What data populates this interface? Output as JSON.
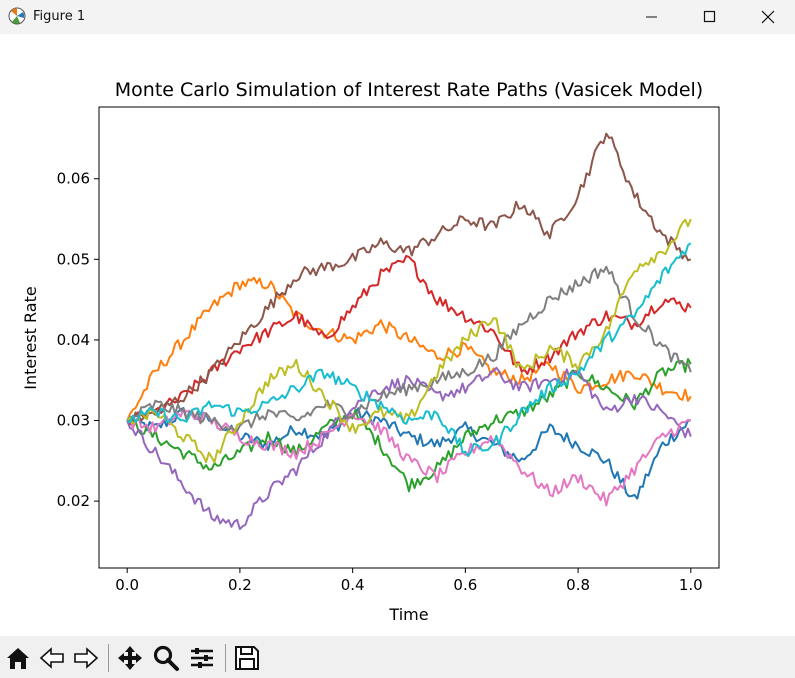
{
  "window": {
    "title": "Figure 1",
    "controls": [
      "minimize",
      "maximize",
      "close"
    ]
  },
  "toolbar": {
    "buttons": [
      {
        "name": "home",
        "icon": "home-icon"
      },
      {
        "name": "back",
        "icon": "back-arrow-icon"
      },
      {
        "name": "forward",
        "icon": "forward-arrow-icon"
      },
      {
        "name": "pan",
        "icon": "move-icon"
      },
      {
        "name": "zoom",
        "icon": "zoom-icon"
      },
      {
        "name": "configure-subplots",
        "icon": "sliders-icon"
      },
      {
        "name": "save",
        "icon": "save-icon"
      }
    ]
  },
  "chart_data": {
    "type": "line",
    "title": "Monte Carlo Simulation of Interest Rate Paths (Vasicek Model)",
    "xlabel": "Time",
    "ylabel": "Interest Rate",
    "xlim": [
      -0.05,
      1.05
    ],
    "ylim": [
      0.0117,
      0.0689
    ],
    "xticks": [
      0.0,
      0.2,
      0.4,
      0.6,
      0.8,
      1.0
    ],
    "xtick_labels": [
      "0.0",
      "0.2",
      "0.4",
      "0.6",
      "0.8",
      "1.0"
    ],
    "yticks": [
      0.02,
      0.03,
      0.04,
      0.05,
      0.06
    ],
    "ytick_labels": [
      "0.02",
      "0.03",
      "0.04",
      "0.05",
      "0.06"
    ],
    "grid": false,
    "legend": "none",
    "series": [
      {
        "color": "#1f77b4",
        "x": [
          0,
          0.05,
          0.1,
          0.15,
          0.2,
          0.25,
          0.3,
          0.35,
          0.4,
          0.45,
          0.5,
          0.55,
          0.6,
          0.65,
          0.7,
          0.75,
          0.8,
          0.85,
          0.9,
          0.95,
          1.0
        ],
        "y": [
          0.03,
          0.029,
          0.031,
          0.03,
          0.028,
          0.027,
          0.029,
          0.028,
          0.031,
          0.03,
          0.028,
          0.027,
          0.029,
          0.027,
          0.025,
          0.029,
          0.027,
          0.025,
          0.02,
          0.027,
          0.03
        ]
      },
      {
        "color": "#ff7f0e",
        "x": [
          0,
          0.05,
          0.1,
          0.15,
          0.2,
          0.25,
          0.3,
          0.35,
          0.4,
          0.45,
          0.5,
          0.55,
          0.6,
          0.65,
          0.7,
          0.75,
          0.8,
          0.85,
          0.9,
          0.95,
          1.0
        ],
        "y": [
          0.03,
          0.036,
          0.04,
          0.044,
          0.047,
          0.047,
          0.043,
          0.041,
          0.04,
          0.042,
          0.04,
          0.038,
          0.039,
          0.036,
          0.035,
          0.037,
          0.034,
          0.035,
          0.036,
          0.034,
          0.033
        ]
      },
      {
        "color": "#2ca02c",
        "x": [
          0,
          0.05,
          0.1,
          0.15,
          0.2,
          0.25,
          0.3,
          0.35,
          0.4,
          0.45,
          0.5,
          0.55,
          0.6,
          0.65,
          0.7,
          0.75,
          0.8,
          0.85,
          0.9,
          0.95,
          1.0
        ],
        "y": [
          0.03,
          0.028,
          0.026,
          0.024,
          0.026,
          0.028,
          0.026,
          0.029,
          0.031,
          0.027,
          0.022,
          0.024,
          0.028,
          0.03,
          0.031,
          0.033,
          0.036,
          0.034,
          0.032,
          0.036,
          0.037
        ]
      },
      {
        "color": "#d62728",
        "x": [
          0,
          0.05,
          0.1,
          0.15,
          0.2,
          0.25,
          0.3,
          0.35,
          0.4,
          0.45,
          0.5,
          0.55,
          0.6,
          0.65,
          0.7,
          0.75,
          0.8,
          0.85,
          0.9,
          0.95,
          1.0
        ],
        "y": [
          0.03,
          0.031,
          0.033,
          0.036,
          0.039,
          0.041,
          0.043,
          0.04,
          0.044,
          0.048,
          0.05,
          0.045,
          0.043,
          0.041,
          0.036,
          0.038,
          0.041,
          0.043,
          0.042,
          0.045,
          0.044
        ]
      },
      {
        "color": "#9467bd",
        "x": [
          0,
          0.05,
          0.1,
          0.15,
          0.2,
          0.25,
          0.3,
          0.35,
          0.4,
          0.45,
          0.5,
          0.55,
          0.6,
          0.65,
          0.7,
          0.75,
          0.8,
          0.85,
          0.9,
          0.95,
          1.0
        ],
        "y": [
          0.03,
          0.026,
          0.022,
          0.018,
          0.017,
          0.021,
          0.024,
          0.028,
          0.032,
          0.034,
          0.035,
          0.033,
          0.034,
          0.036,
          0.034,
          0.035,
          0.036,
          0.031,
          0.033,
          0.031,
          0.028
        ]
      },
      {
        "color": "#8c564b",
        "x": [
          0,
          0.05,
          0.1,
          0.15,
          0.2,
          0.25,
          0.3,
          0.35,
          0.4,
          0.45,
          0.5,
          0.55,
          0.6,
          0.65,
          0.7,
          0.75,
          0.8,
          0.85,
          0.9,
          0.95,
          1.0
        ],
        "y": [
          0.03,
          0.031,
          0.033,
          0.036,
          0.04,
          0.044,
          0.048,
          0.049,
          0.05,
          0.052,
          0.051,
          0.053,
          0.055,
          0.054,
          0.057,
          0.053,
          0.058,
          0.066,
          0.058,
          0.053,
          0.05
        ]
      },
      {
        "color": "#e377c2",
        "x": [
          0,
          0.05,
          0.1,
          0.15,
          0.2,
          0.25,
          0.3,
          0.35,
          0.4,
          0.45,
          0.5,
          0.55,
          0.6,
          0.65,
          0.7,
          0.75,
          0.8,
          0.85,
          0.9,
          0.95,
          1.0
        ],
        "y": [
          0.03,
          0.029,
          0.031,
          0.03,
          0.028,
          0.027,
          0.026,
          0.028,
          0.031,
          0.029,
          0.025,
          0.023,
          0.026,
          0.028,
          0.024,
          0.021,
          0.023,
          0.02,
          0.024,
          0.028,
          0.03
        ]
      },
      {
        "color": "#7f7f7f",
        "x": [
          0,
          0.05,
          0.1,
          0.15,
          0.2,
          0.25,
          0.3,
          0.35,
          0.4,
          0.45,
          0.5,
          0.55,
          0.6,
          0.65,
          0.7,
          0.75,
          0.8,
          0.85,
          0.9,
          0.95,
          1.0
        ],
        "y": [
          0.03,
          0.032,
          0.031,
          0.03,
          0.029,
          0.031,
          0.03,
          0.032,
          0.031,
          0.033,
          0.034,
          0.035,
          0.036,
          0.038,
          0.042,
          0.045,
          0.047,
          0.049,
          0.043,
          0.039,
          0.036
        ]
      },
      {
        "color": "#bcbd22",
        "x": [
          0,
          0.05,
          0.1,
          0.15,
          0.2,
          0.25,
          0.3,
          0.35,
          0.4,
          0.45,
          0.5,
          0.55,
          0.6,
          0.65,
          0.7,
          0.75,
          0.8,
          0.85,
          0.9,
          0.95,
          1.0
        ],
        "y": [
          0.03,
          0.031,
          0.028,
          0.025,
          0.03,
          0.035,
          0.037,
          0.033,
          0.029,
          0.031,
          0.03,
          0.036,
          0.04,
          0.043,
          0.036,
          0.039,
          0.037,
          0.041,
          0.049,
          0.051,
          0.055
        ]
      },
      {
        "color": "#17becf",
        "x": [
          0,
          0.05,
          0.1,
          0.15,
          0.2,
          0.25,
          0.3,
          0.35,
          0.4,
          0.45,
          0.5,
          0.55,
          0.6,
          0.65,
          0.7,
          0.75,
          0.8,
          0.85,
          0.9,
          0.95,
          1.0
        ],
        "y": [
          0.03,
          0.031,
          0.03,
          0.032,
          0.031,
          0.032,
          0.034,
          0.036,
          0.034,
          0.032,
          0.03,
          0.031,
          0.026,
          0.027,
          0.031,
          0.034,
          0.036,
          0.04,
          0.043,
          0.048,
          0.052
        ]
      }
    ]
  }
}
